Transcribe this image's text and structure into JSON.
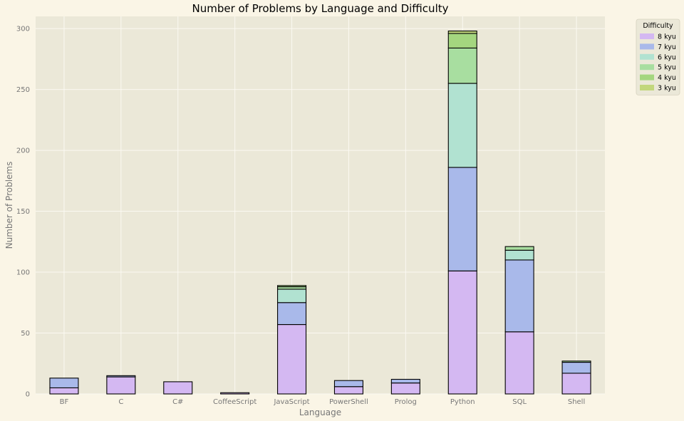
{
  "chart_data": {
    "type": "bar",
    "stacked": true,
    "title": "Number of Problems by Language and Difficulty",
    "xlabel": "Language",
    "ylabel": "Number of Problems",
    "ylim": [
      0,
      310
    ],
    "yticks": [
      0,
      50,
      100,
      150,
      200,
      250,
      300
    ],
    "grid": true,
    "legend_title": "Difficulty",
    "legend_position": "outside-top-right",
    "categories": [
      "BF",
      "C",
      "C#",
      "CoffeeScript",
      "JavaScript",
      "PowerShell",
      "Prolog",
      "Python",
      "SQL",
      "Shell"
    ],
    "series": [
      {
        "name": "8 kyu",
        "color": "#d4b8f2",
        "values": [
          5,
          14,
          10,
          1,
          57,
          6,
          9,
          101,
          51,
          17
        ]
      },
      {
        "name": "7 kyu",
        "color": "#a9b9ea",
        "values": [
          8,
          1,
          0,
          0,
          18,
          5,
          3,
          85,
          59,
          9
        ]
      },
      {
        "name": "6 kyu",
        "color": "#b1e2d1",
        "values": [
          0,
          0,
          0,
          0,
          11,
          0,
          0,
          69,
          8,
          0
        ]
      },
      {
        "name": "5 kyu",
        "color": "#a8dea0",
        "values": [
          0,
          0,
          0,
          0,
          2,
          0,
          0,
          29,
          3,
          1
        ]
      },
      {
        "name": "4 kyu",
        "color": "#a4d67f",
        "values": [
          0,
          0,
          0,
          0,
          1,
          0,
          0,
          12,
          0,
          0
        ]
      },
      {
        "name": "3 kyu",
        "color": "#c2d77c",
        "values": [
          0,
          0,
          0,
          0,
          0,
          0,
          0,
          2,
          0,
          0
        ]
      }
    ]
  },
  "colors": {
    "page_background": "#faf5e6",
    "plot_background": "#ebe8d8",
    "grid": "#fbf9f2",
    "bar_edge": "#000000",
    "tick_text": "#777777"
  }
}
